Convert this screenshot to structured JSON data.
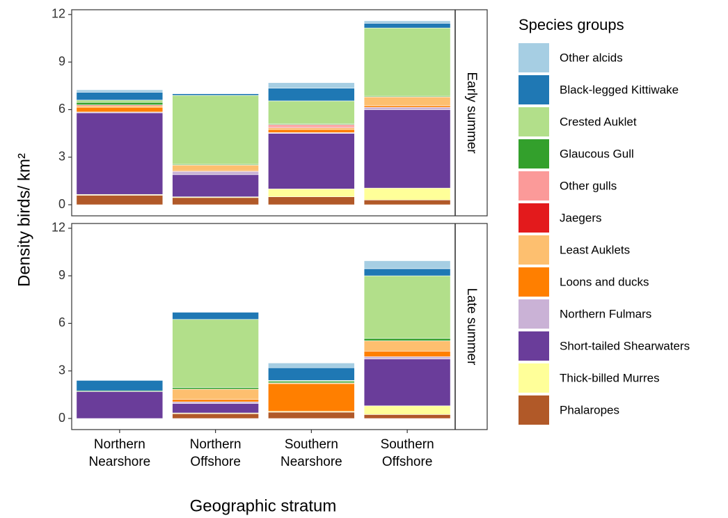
{
  "axes": {
    "ylabel": "Density birds/ km²",
    "xlabel": "Geographic stratum"
  },
  "legend": {
    "title": "Species groups"
  },
  "chart_data": [
    {
      "type": "bar",
      "stacked": true,
      "facet": "Early summer",
      "categories": [
        "Northern Nearshore",
        "Northern Offshore",
        "Southern Nearshore",
        "Southern Offshore"
      ],
      "ylim": [
        -0.7,
        12.3
      ],
      "yticks": [
        0,
        3,
        6,
        9,
        12
      ],
      "series": [
        {
          "name": "Other alcids",
          "color": "#a6cee3",
          "values": [
            0.15,
            0,
            0.35,
            0.15
          ]
        },
        {
          "name": "Black-legged Kittiwake",
          "color": "#1f78b4",
          "values": [
            0.5,
            0.1,
            0.8,
            0.3
          ]
        },
        {
          "name": "Crested Auklet",
          "color": "#b2df8a",
          "values": [
            0.15,
            4.35,
            1.45,
            4.3
          ]
        },
        {
          "name": "Glaucous Gull",
          "color": "#33a02c",
          "values": [
            0.15,
            0.05,
            0.05,
            0.05
          ]
        },
        {
          "name": "Other gulls",
          "color": "#fb9a99",
          "values": [
            0,
            0,
            0.15,
            0
          ]
        },
        {
          "name": "Jaegers",
          "color": "#e31a1c",
          "values": [
            0.05,
            0,
            0.05,
            0
          ]
        },
        {
          "name": "Least Auklets",
          "color": "#fdbf6f",
          "values": [
            0.1,
            0.35,
            0.1,
            0.55
          ]
        },
        {
          "name": "Loons and ducks",
          "color": "#ff7f00",
          "values": [
            0.3,
            0.05,
            0.2,
            0.1
          ]
        },
        {
          "name": "Northern Fulmars",
          "color": "#cab2d6",
          "values": [
            0.05,
            0.2,
            0.05,
            0.15
          ]
        },
        {
          "name": "Short-tailed Shearwaters",
          "color": "#6a3d9a",
          "values": [
            5.15,
            1.4,
            3.5,
            4.95
          ]
        },
        {
          "name": "Thick-billed Murres",
          "color": "#ffff99",
          "values": [
            0.05,
            0.05,
            0.5,
            0.75
          ]
        },
        {
          "name": "Phalaropes",
          "color": "#b15928",
          "values": [
            0.6,
            0.45,
            0.5,
            0.3
          ]
        }
      ]
    },
    {
      "type": "bar",
      "stacked": true,
      "facet": "Late summer",
      "categories": [
        "Northern Nearshore",
        "Northern Offshore",
        "Southern Nearshore",
        "Southern Offshore"
      ],
      "ylim": [
        -0.7,
        12.3
      ],
      "yticks": [
        0,
        3,
        6,
        9,
        12
      ],
      "series": [
        {
          "name": "Other alcids",
          "color": "#a6cee3",
          "values": [
            0,
            0,
            0.3,
            0.5
          ]
        },
        {
          "name": "Black-legged Kittiwake",
          "color": "#1f78b4",
          "values": [
            0.65,
            0.45,
            0.8,
            0.45
          ]
        },
        {
          "name": "Crested Auklet",
          "color": "#b2df8a",
          "values": [
            0,
            4.3,
            0.05,
            3.95
          ]
        },
        {
          "name": "Glaucous Gull",
          "color": "#33a02c",
          "values": [
            0.05,
            0.1,
            0.1,
            0.15
          ]
        },
        {
          "name": "Other gulls",
          "color": "#fb9a99",
          "values": [
            0,
            0,
            0,
            0
          ]
        },
        {
          "name": "Jaegers",
          "color": "#e31a1c",
          "values": [
            0,
            0,
            0,
            0
          ]
        },
        {
          "name": "Least Auklets",
          "color": "#fdbf6f",
          "values": [
            0,
            0.65,
            0.05,
            0.65
          ]
        },
        {
          "name": "Loons and ducks",
          "color": "#ff7f00",
          "values": [
            0,
            0.15,
            1.75,
            0.35
          ]
        },
        {
          "name": "Northern Fulmars",
          "color": "#cab2d6",
          "values": [
            0,
            0.1,
            0,
            0.15
          ]
        },
        {
          "name": "Short-tailed Shearwaters",
          "color": "#6a3d9a",
          "values": [
            1.7,
            0.6,
            0,
            2.95
          ]
        },
        {
          "name": "Thick-billed Murres",
          "color": "#ffff99",
          "values": [
            0,
            0.05,
            0.05,
            0.55
          ]
        },
        {
          "name": "Phalaropes",
          "color": "#b15928",
          "values": [
            0,
            0.3,
            0.4,
            0.25
          ]
        }
      ]
    }
  ]
}
